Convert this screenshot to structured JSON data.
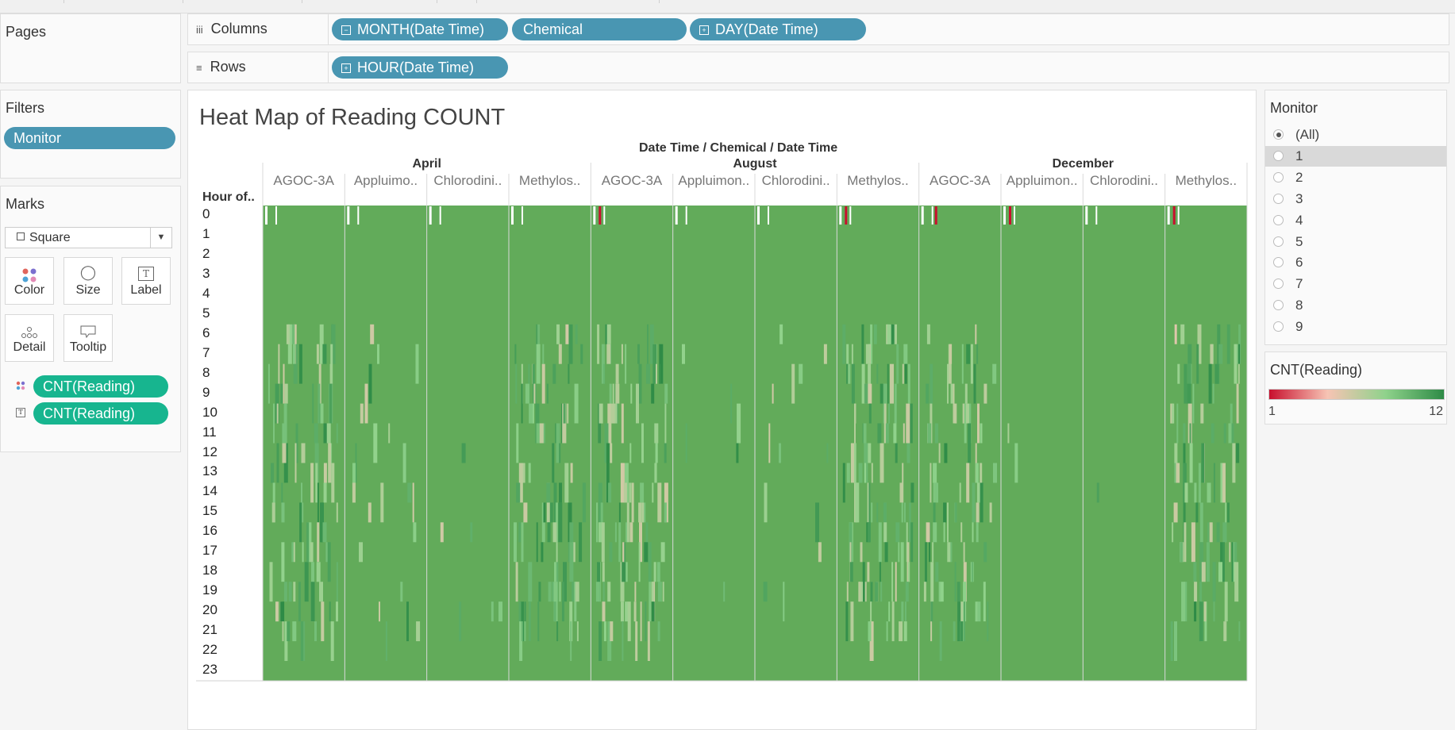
{
  "shelves": {
    "columns_label": "Columns",
    "rows_label": "Rows",
    "columns": [
      "MONTH(Date Time)",
      "Chemical",
      "DAY(Date Time)"
    ],
    "rows": [
      "HOUR(Date Time)"
    ]
  },
  "left": {
    "pages_title": "Pages",
    "filters_title": "Filters",
    "filter_pill": "Monitor",
    "marks_title": "Marks",
    "mark_type": "Square",
    "mark_buttons": [
      "Color",
      "Size",
      "Label",
      "Detail",
      "Tooltip"
    ],
    "mark_fields": [
      "CNT(Reading)",
      "CNT(Reading)"
    ]
  },
  "view": {
    "title": "Heat Map of Reading COUNT",
    "column_header_title": "Date Time / Chemical / Date Time",
    "row_header_title": "Hour of.."
  },
  "chart_data": {
    "type": "heatmap",
    "title": "Heat Map of Reading COUNT",
    "columns_hierarchy": "Date Time / Chemical / Date Time",
    "months": [
      "April",
      "August",
      "December"
    ],
    "chemicals": [
      "AGOC-3A",
      "Appluimo..",
      "Chlorodini..",
      "Methylos..",
      "AGOC-3A",
      "Appluimon..",
      "Chlorodini..",
      "Methylos..",
      "AGOC-3A",
      "Appluimon..",
      "Chlorodini..",
      "Methylos.."
    ],
    "rows_label": "Hour of..",
    "hours": [
      "0",
      "1",
      "2",
      "3",
      "4",
      "5",
      "6",
      "7",
      "8",
      "9",
      "10",
      "11",
      "12",
      "13",
      "14",
      "15",
      "16",
      "17",
      "18",
      "19",
      "20",
      "21",
      "22",
      "23"
    ],
    "color_measure": "CNT(Reading)",
    "color_range": [
      1,
      12
    ],
    "color_scale": [
      "#c8102e",
      "#f7c4b4",
      "#8fd28b",
      "#2e8b46"
    ],
    "typical_value": 12
  },
  "monitor_filter": {
    "title": "Monitor",
    "options": [
      "(All)",
      "1",
      "2",
      "3",
      "4",
      "5",
      "6",
      "7",
      "8",
      "9"
    ],
    "selected": "(All)",
    "highlighted": "1"
  },
  "legend": {
    "title": "CNT(Reading)",
    "min_label": "1",
    "max_label": "12"
  }
}
